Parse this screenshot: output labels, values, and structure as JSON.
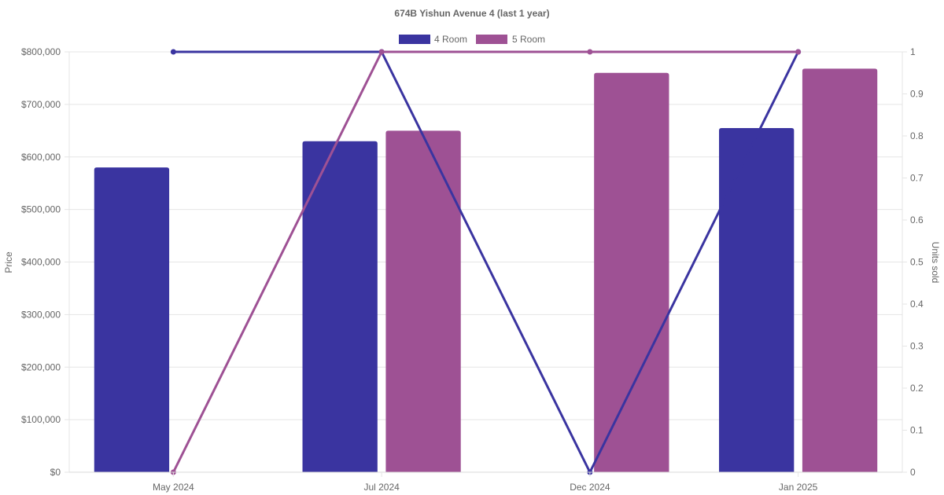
{
  "chart_data": {
    "type": "bar",
    "title": "674B Yishun Avenue 4 (last 1 year)",
    "categories": [
      "May 2024",
      "Jul 2024",
      "Dec 2024",
      "Jan 2025"
    ],
    "series": [
      {
        "name": "4 Room",
        "type": "bar",
        "axis": "left",
        "color": "#3a34a0",
        "values": [
          580000,
          630000,
          null,
          655000
        ]
      },
      {
        "name": "5 Room",
        "type": "bar",
        "axis": "left",
        "color": "#9e5194",
        "values": [
          null,
          650000,
          760000,
          768000
        ]
      },
      {
        "name": "4 Room",
        "type": "line",
        "axis": "right",
        "color": "#3a34a0",
        "values": [
          1,
          1,
          0,
          1
        ]
      },
      {
        "name": "5 Room",
        "type": "line",
        "axis": "right",
        "color": "#9e5194",
        "values": [
          0,
          1,
          1,
          1
        ]
      }
    ],
    "legend": {
      "position": "top",
      "entries": [
        {
          "label": "4 Room",
          "color": "#3a34a0"
        },
        {
          "label": "5 Room",
          "color": "#9e5194"
        }
      ]
    },
    "ylabel": "Price",
    "y2label": "Units sold",
    "ylim": [
      0,
      800000
    ],
    "y2lim": [
      0,
      1
    ],
    "y_ticks": [
      "$0",
      "$100,000",
      "$200,000",
      "$300,000",
      "$400,000",
      "$500,000",
      "$600,000",
      "$700,000",
      "$800,000"
    ],
    "y_tick_values": [
      0,
      100000,
      200000,
      300000,
      400000,
      500000,
      600000,
      700000,
      800000
    ],
    "y2_ticks": [
      "0",
      "0.1",
      "0.2",
      "0.3",
      "0.4",
      "0.5",
      "0.6",
      "0.7",
      "0.8",
      "0.9",
      "1"
    ],
    "y2_tick_values": [
      0,
      0.1,
      0.2,
      0.3,
      0.4,
      0.5,
      0.6,
      0.7,
      0.8,
      0.9,
      1
    ],
    "grid": true
  }
}
